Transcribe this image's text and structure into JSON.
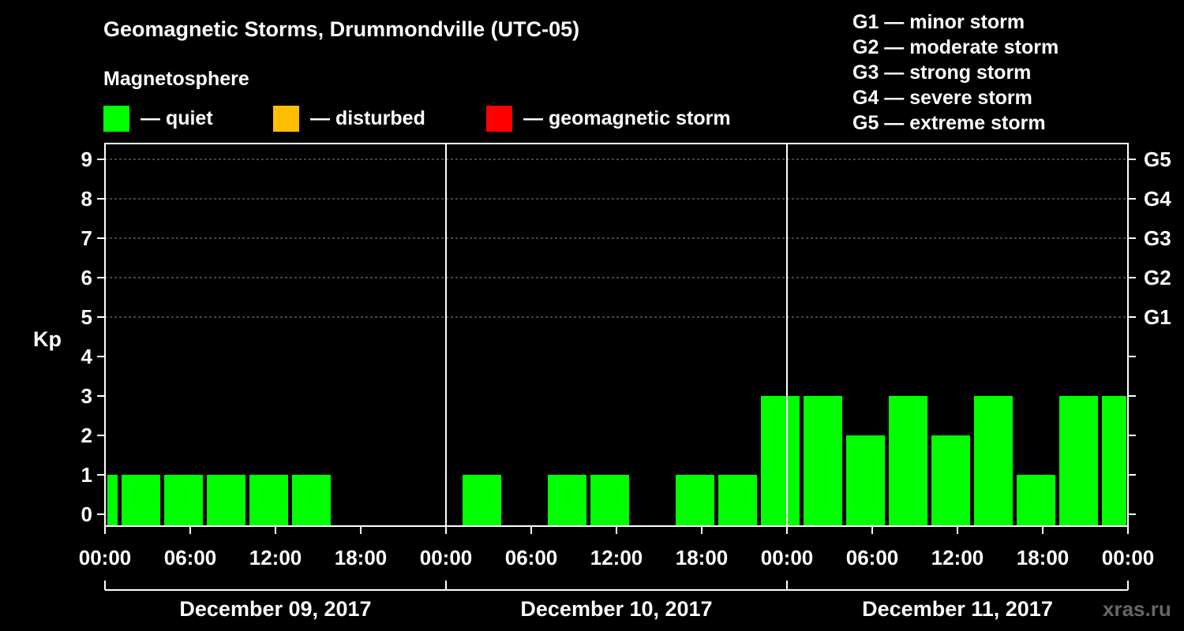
{
  "colors": {
    "background": "#000000",
    "quiet": "#00ff00",
    "disturbed": "#ffbf00",
    "storm": "#ff0000",
    "axis": "#ffffff",
    "grid": "#888888",
    "watermark": "#666666"
  },
  "legend": {
    "title": "Magnetosphere",
    "items": [
      {
        "key": "quiet",
        "label": "— quiet",
        "color": "#00ff00"
      },
      {
        "key": "disturbed",
        "label": "— disturbed",
        "color": "#ffbf00"
      },
      {
        "key": "storm",
        "label": "— geomagnetic storm",
        "color": "#ff0000"
      }
    ]
  },
  "g_scale": [
    {
      "level": "G1",
      "text": "G1 — minor storm"
    },
    {
      "level": "G2",
      "text": "G2 — moderate storm"
    },
    {
      "level": "G3",
      "text": "G3 — strong storm"
    },
    {
      "level": "G4",
      "text": "G4 — severe storm"
    },
    {
      "level": "G5",
      "text": "G5 — extreme storm"
    }
  ],
  "watermark": "xras.ru",
  "chart_data": {
    "type": "bar",
    "title": "Geomagnetic Storms, Drummondville (UTC-05)",
    "ylabel": "Kp",
    "ylim": [
      0,
      9
    ],
    "yticks": [
      0,
      1,
      2,
      3,
      4,
      5,
      6,
      7,
      8,
      9
    ],
    "right_axis_labels": [
      {
        "kp": 5,
        "label": "G1"
      },
      {
        "kp": 6,
        "label": "G2"
      },
      {
        "kp": 7,
        "label": "G3"
      },
      {
        "kp": 8,
        "label": "G4"
      },
      {
        "kp": 9,
        "label": "G5"
      }
    ],
    "grid": "dashed horizontal at Kp 5-9",
    "x_tick_labels": [
      "00:00",
      "06:00",
      "12:00",
      "18:00",
      "00:00",
      "06:00",
      "12:00",
      "18:00",
      "00:00",
      "06:00",
      "12:00",
      "18:00",
      "00:00"
    ],
    "days": [
      "December 09, 2017",
      "December 10, 2017",
      "December 11, 2017"
    ],
    "interval_hours": 3,
    "bars": [
      {
        "day": 0,
        "start_hour": 0,
        "end_hour": 1,
        "kp": 1,
        "status": "quiet"
      },
      {
        "day": 0,
        "start_hour": 1,
        "end_hour": 4,
        "kp": 1,
        "status": "quiet"
      },
      {
        "day": 0,
        "start_hour": 4,
        "end_hour": 7,
        "kp": 1,
        "status": "quiet"
      },
      {
        "day": 0,
        "start_hour": 7,
        "end_hour": 10,
        "kp": 1,
        "status": "quiet"
      },
      {
        "day": 0,
        "start_hour": 10,
        "end_hour": 13,
        "kp": 1,
        "status": "quiet"
      },
      {
        "day": 0,
        "start_hour": 13,
        "end_hour": 16,
        "kp": 1,
        "status": "quiet"
      },
      {
        "day": 1,
        "start_hour": 1,
        "end_hour": 4,
        "kp": 1,
        "status": "quiet"
      },
      {
        "day": 1,
        "start_hour": 7,
        "end_hour": 10,
        "kp": 1,
        "status": "quiet"
      },
      {
        "day": 1,
        "start_hour": 10,
        "end_hour": 13,
        "kp": 1,
        "status": "quiet"
      },
      {
        "day": 1,
        "start_hour": 16,
        "end_hour": 19,
        "kp": 1,
        "status": "quiet"
      },
      {
        "day": 1,
        "start_hour": 19,
        "end_hour": 22,
        "kp": 1,
        "status": "quiet"
      },
      {
        "day": 1,
        "start_hour": 22,
        "end_hour": 25,
        "kp": 3,
        "status": "quiet"
      },
      {
        "day": 2,
        "start_hour": 1,
        "end_hour": 4,
        "kp": 3,
        "status": "quiet"
      },
      {
        "day": 2,
        "start_hour": 4,
        "end_hour": 7,
        "kp": 2,
        "status": "quiet"
      },
      {
        "day": 2,
        "start_hour": 7,
        "end_hour": 10,
        "kp": 3,
        "status": "quiet"
      },
      {
        "day": 2,
        "start_hour": 10,
        "end_hour": 13,
        "kp": 2,
        "status": "quiet"
      },
      {
        "day": 2,
        "start_hour": 13,
        "end_hour": 16,
        "kp": 3,
        "status": "quiet"
      },
      {
        "day": 2,
        "start_hour": 16,
        "end_hour": 19,
        "kp": 1,
        "status": "quiet"
      },
      {
        "day": 2,
        "start_hour": 19,
        "end_hour": 22,
        "kp": 3,
        "status": "quiet"
      },
      {
        "day": 2,
        "start_hour": 22,
        "end_hour": 24,
        "kp": 3,
        "status": "quiet"
      }
    ]
  }
}
